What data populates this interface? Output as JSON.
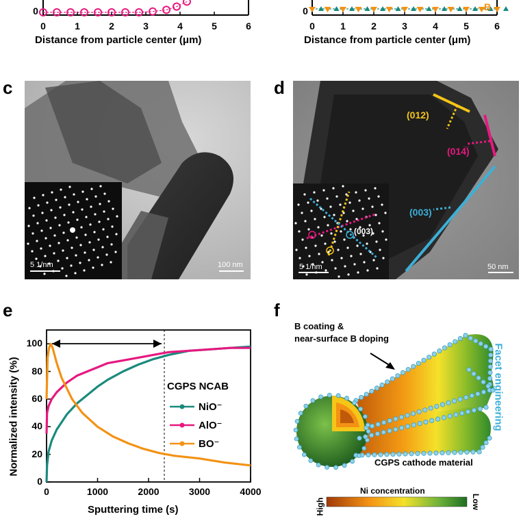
{
  "panel_a": {
    "ticks": [
      "0",
      "1",
      "2",
      "3",
      "4",
      "5",
      "6"
    ],
    "ytick0": "0",
    "xlabel": "Distance from particle center (μm)"
  },
  "panel_b": {
    "ticks": [
      "0",
      "1",
      "2",
      "3",
      "4",
      "5",
      "6"
    ],
    "ytick0": "0",
    "legend_label": "B",
    "xlabel": "Distance from particle center (μm)"
  },
  "panel_c": {
    "letter": "c",
    "inset_scale": "5 1/nm",
    "scale": "100 nm"
  },
  "panel_d": {
    "letter": "d",
    "facets": {
      "f012": "(012)",
      "f014": "(014̅)",
      "f003": "(003)"
    },
    "inset_label": "(003)",
    "inset_scale": "5 1/nm",
    "scale": "50 nm"
  },
  "panel_e": {
    "letter": "e",
    "ylabel": "Normalized intensity (%)",
    "xlabel": "Sputtering time (s)",
    "legend_title": "CGPS NCAB",
    "legend": [
      "NiO⁻",
      "AlO⁻",
      "BO⁻"
    ],
    "xticks": [
      "0",
      "1000",
      "2000",
      "3000",
      "4000"
    ],
    "yticks": [
      "0",
      "20",
      "40",
      "60",
      "80",
      "100"
    ]
  },
  "panel_f": {
    "letter": "f",
    "callout": [
      "B coating &",
      "near-surface B doping"
    ],
    "side_label": "Facet engineering",
    "material_label": "CGPS cathode material",
    "colorbar_title": "Ni concentration",
    "high": "High",
    "low": "Low"
  },
  "colors": {
    "magenta": "#e6187f",
    "teal": "#1a8a7d",
    "orange": "#f39214",
    "cyan": "#3cb0d8",
    "yellow": "#f5c518"
  },
  "chart_data": [
    {
      "type": "scatter",
      "panel": "a",
      "xlabel": "Distance from particle center (μm)",
      "xlim": [
        0,
        6
      ],
      "series": [
        {
          "x": [
            0,
            0.4,
            0.8,
            1.2,
            1.6,
            2.0,
            2.4,
            2.8,
            3.2,
            3.6,
            3.9,
            4.2
          ],
          "y": [
            0,
            0,
            0,
            0,
            0,
            0,
            0,
            0,
            0.2,
            0.6,
            1.4,
            2.6
          ]
        }
      ]
    },
    {
      "type": "scatter",
      "panel": "b",
      "xlabel": "Distance from particle center (μm)",
      "xlim": [
        0,
        6
      ],
      "series": [
        {
          "name": "B",
          "x": [
            0,
            0.5,
            1.0,
            1.5,
            2.0,
            2.5,
            3.0,
            3.5,
            4.0,
            4.5,
            5.0,
            5.5,
            6.0
          ],
          "y": [
            0,
            0,
            0,
            0,
            0,
            0,
            0,
            0,
            0,
            0,
            0,
            0,
            0
          ]
        }
      ]
    },
    {
      "type": "line",
      "panel": "e",
      "title": "CGPS NCAB",
      "xlabel": "Sputtering time (s)",
      "ylabel": "Normalized intensity (%)",
      "xlim": [
        0,
        4000
      ],
      "ylim": [
        0,
        110
      ],
      "series": [
        {
          "name": "NiO⁻",
          "x": [
            0,
            10,
            40,
            100,
            200,
            400,
            600,
            800,
            1000,
            1200,
            1500,
            1800,
            2100,
            2400,
            2800,
            3200,
            3600,
            4000
          ],
          "y": [
            0,
            12,
            22,
            30,
            38,
            49,
            57,
            63,
            69,
            74,
            80,
            85,
            89,
            92,
            95,
            96,
            97,
            98
          ]
        },
        {
          "name": "AlO⁻",
          "x": [
            0,
            10,
            40,
            100,
            200,
            400,
            600,
            800,
            1000,
            1200,
            1500,
            1800,
            2100,
            2400,
            2800,
            3200,
            3600,
            4000
          ],
          "y": [
            35,
            50,
            55,
            60,
            65,
            72,
            77,
            80,
            83,
            86,
            88,
            90,
            92,
            94,
            95,
            96,
            97,
            97
          ]
        },
        {
          "name": "BO⁻",
          "x": [
            0,
            20,
            50,
            80,
            120,
            200,
            300,
            500,
            700,
            1000,
            1300,
            1600,
            1900,
            2200,
            2500,
            3000,
            3500,
            4000
          ],
          "y": [
            60,
            90,
            97,
            100,
            97,
            86,
            75,
            60,
            50,
            40,
            33,
            28,
            24,
            21,
            19,
            17,
            14,
            12
          ]
        }
      ]
    }
  ]
}
